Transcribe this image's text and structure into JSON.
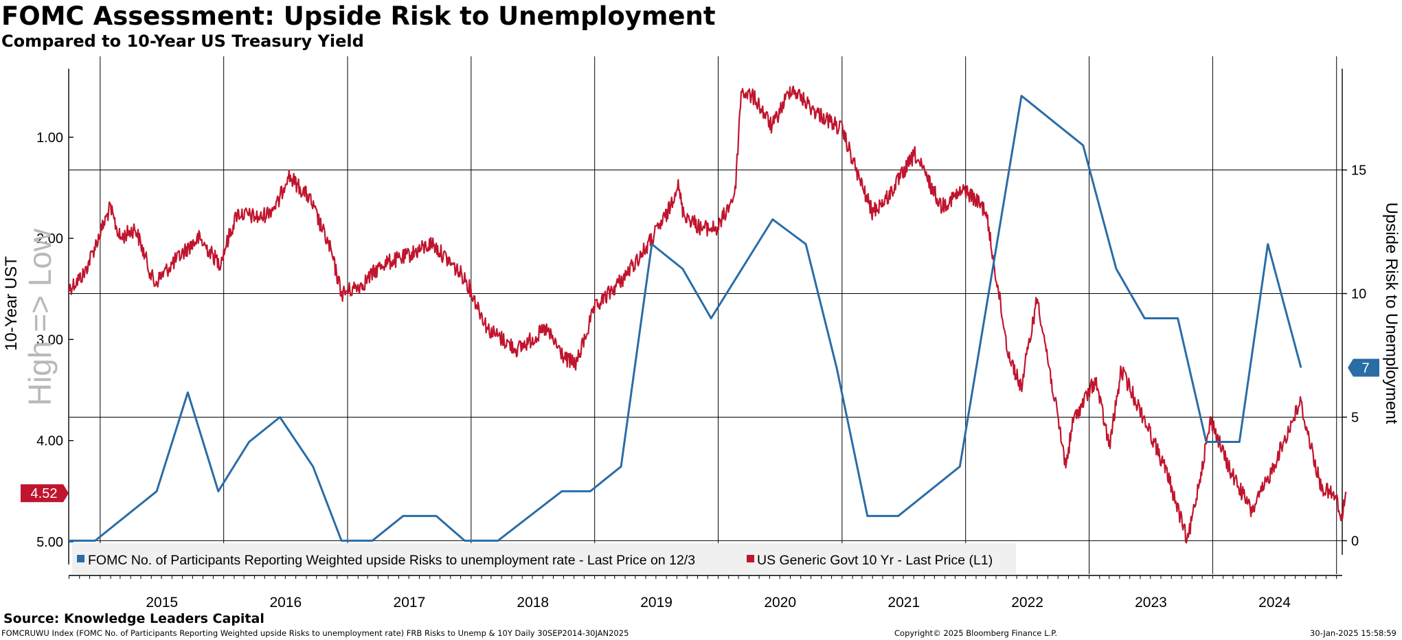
{
  "header": {
    "title": "FOMC Assessment: Upside Risk to Unemployment",
    "subtitle": "Compared to 10-Year US Treasury Yield"
  },
  "footer": {
    "source": "Source: Knowledge Leaders Capital",
    "description": "FOMCRUWU Index (FOMC No. of Participants Reporting Weighted upside Risks to unemployment rate) FRB Risks to Unemp & 10Y  Daily 30SEP2014-30JAN2025",
    "copyright": "Copyright© 2025 Bloomberg Finance L.P.",
    "timestamp": "30-Jan-2025 15:58:59"
  },
  "chart_data": {
    "type": "line",
    "title": "FOMC Assessment: Upside Risk to Unemployment",
    "subtitle": "Compared to 10-Year US Treasury Yield",
    "x_start": "2014-09-30",
    "x_end": "2025-01-30",
    "x_ticks": [
      "2015",
      "2016",
      "2017",
      "2018",
      "2019",
      "2020",
      "2021",
      "2022",
      "2023",
      "2024"
    ],
    "left_axis": {
      "label": "10-Year UST",
      "annotation": "High => Low",
      "inverted": true,
      "ticks": [
        "1.00",
        "2.00",
        "3.00",
        "4.00",
        "5.00"
      ],
      "range": [
        0.2,
        5.32
      ]
    },
    "right_axis": {
      "label": "Upside Risk to Unemployment",
      "ticks": [
        "0",
        "5",
        "10",
        "15"
      ],
      "range": [
        -1.35,
        19.6
      ]
    },
    "grid": "horizontal at right-axis ticks, vertical at year boundaries",
    "legend_position": "bottom",
    "series": [
      {
        "name": "FOMC No. of Participants Reporting Weighted upside Risks to unemployment rate - Last Price on 12/3",
        "axis": "right",
        "color": "#2a6ca6",
        "last_value": "7",
        "points": [
          [
            "2014-09-30",
            0
          ],
          [
            "2014-12-17",
            0
          ],
          [
            "2015-06-17",
            2
          ],
          [
            "2015-09-17",
            6
          ],
          [
            "2015-12-16",
            2
          ],
          [
            "2016-03-16",
            4
          ],
          [
            "2016-06-15",
            5
          ],
          [
            "2016-09-21",
            3
          ],
          [
            "2016-12-14",
            0
          ],
          [
            "2017-03-15",
            0
          ],
          [
            "2017-06-14",
            1
          ],
          [
            "2017-09-20",
            1
          ],
          [
            "2017-12-13",
            0
          ],
          [
            "2018-03-21",
            0
          ],
          [
            "2018-09-26",
            2
          ],
          [
            "2018-12-19",
            2
          ],
          [
            "2019-03-20",
            3
          ],
          [
            "2019-06-19",
            12
          ],
          [
            "2019-09-18",
            11
          ],
          [
            "2019-12-11",
            9
          ],
          [
            "2020-06-10",
            13
          ],
          [
            "2020-09-16",
            12
          ],
          [
            "2020-12-16",
            7
          ],
          [
            "2021-03-17",
            1
          ],
          [
            "2021-06-16",
            1
          ],
          [
            "2021-12-15",
            3
          ],
          [
            "2022-06-15",
            18
          ],
          [
            "2022-12-14",
            16
          ],
          [
            "2023-03-22",
            11
          ],
          [
            "2023-06-14",
            9
          ],
          [
            "2023-09-20",
            9
          ],
          [
            "2023-12-13",
            4
          ],
          [
            "2024-03-20",
            4
          ],
          [
            "2024-06-12",
            12
          ],
          [
            "2024-09-18",
            7
          ]
        ]
      },
      {
        "name": "US Generic Govt 10 Yr - Last Price (L1)",
        "axis": "left",
        "color": "#c0152e",
        "last_value": "4.52",
        "points": [
          [
            "2014-09-30",
            2.5
          ],
          [
            "2014-11-15",
            2.35
          ],
          [
            "2015-01-30",
            1.7
          ],
          [
            "2015-03-01",
            2.0
          ],
          [
            "2015-04-15",
            1.9
          ],
          [
            "2015-06-10",
            2.45
          ],
          [
            "2015-07-20",
            2.3
          ],
          [
            "2015-09-15",
            2.1
          ],
          [
            "2015-10-20",
            2.0
          ],
          [
            "2015-12-20",
            2.25
          ],
          [
            "2016-02-10",
            1.75
          ],
          [
            "2016-04-20",
            1.8
          ],
          [
            "2016-06-10",
            1.65
          ],
          [
            "2016-07-08",
            1.37
          ],
          [
            "2016-09-10",
            1.6
          ],
          [
            "2016-11-10",
            2.1
          ],
          [
            "2016-12-15",
            2.55
          ],
          [
            "2017-02-15",
            2.45
          ],
          [
            "2017-04-15",
            2.25
          ],
          [
            "2017-06-10",
            2.2
          ],
          [
            "2017-09-08",
            2.05
          ],
          [
            "2017-12-15",
            2.4
          ],
          [
            "2018-02-20",
            2.9
          ],
          [
            "2018-05-17",
            3.1
          ],
          [
            "2018-08-10",
            2.9
          ],
          [
            "2018-10-08",
            3.2
          ],
          [
            "2018-11-08",
            3.24
          ],
          [
            "2018-12-31",
            2.7
          ],
          [
            "2019-03-25",
            2.4
          ],
          [
            "2019-06-01",
            2.1
          ],
          [
            "2019-08-05",
            1.75
          ],
          [
            "2019-09-03",
            1.46
          ],
          [
            "2019-09-20",
            1.75
          ],
          [
            "2019-11-10",
            1.9
          ],
          [
            "2019-12-31",
            1.9
          ],
          [
            "2020-02-20",
            1.55
          ],
          [
            "2020-03-09",
            0.54
          ],
          [
            "2020-04-20",
            0.62
          ],
          [
            "2020-06-08",
            0.9
          ],
          [
            "2020-08-04",
            0.51
          ],
          [
            "2020-10-15",
            0.75
          ],
          [
            "2020-12-31",
            0.92
          ],
          [
            "2021-02-25",
            1.45
          ],
          [
            "2021-03-31",
            1.74
          ],
          [
            "2021-05-15",
            1.6
          ],
          [
            "2021-08-04",
            1.17
          ],
          [
            "2021-10-21",
            1.68
          ],
          [
            "2021-12-31",
            1.52
          ],
          [
            "2022-03-01",
            1.72
          ],
          [
            "2022-05-06",
            3.12
          ],
          [
            "2022-06-14",
            3.48
          ],
          [
            "2022-08-01",
            2.58
          ],
          [
            "2022-10-24",
            4.25
          ],
          [
            "2022-11-15",
            3.8
          ],
          [
            "2023-01-20",
            3.4
          ],
          [
            "2023-03-02",
            4.06
          ],
          [
            "2023-04-06",
            3.3
          ],
          [
            "2023-06-15",
            3.8
          ],
          [
            "2023-08-21",
            4.34
          ],
          [
            "2023-10-19",
            5.0
          ],
          [
            "2023-12-27",
            3.79
          ],
          [
            "2024-02-15",
            4.25
          ],
          [
            "2024-04-25",
            4.7
          ],
          [
            "2024-06-10",
            4.4
          ],
          [
            "2024-09-16",
            3.62
          ],
          [
            "2024-11-15",
            4.45
          ],
          [
            "2024-12-31",
            4.57
          ],
          [
            "2025-01-14",
            4.79
          ],
          [
            "2025-01-30",
            4.52
          ]
        ]
      }
    ]
  }
}
